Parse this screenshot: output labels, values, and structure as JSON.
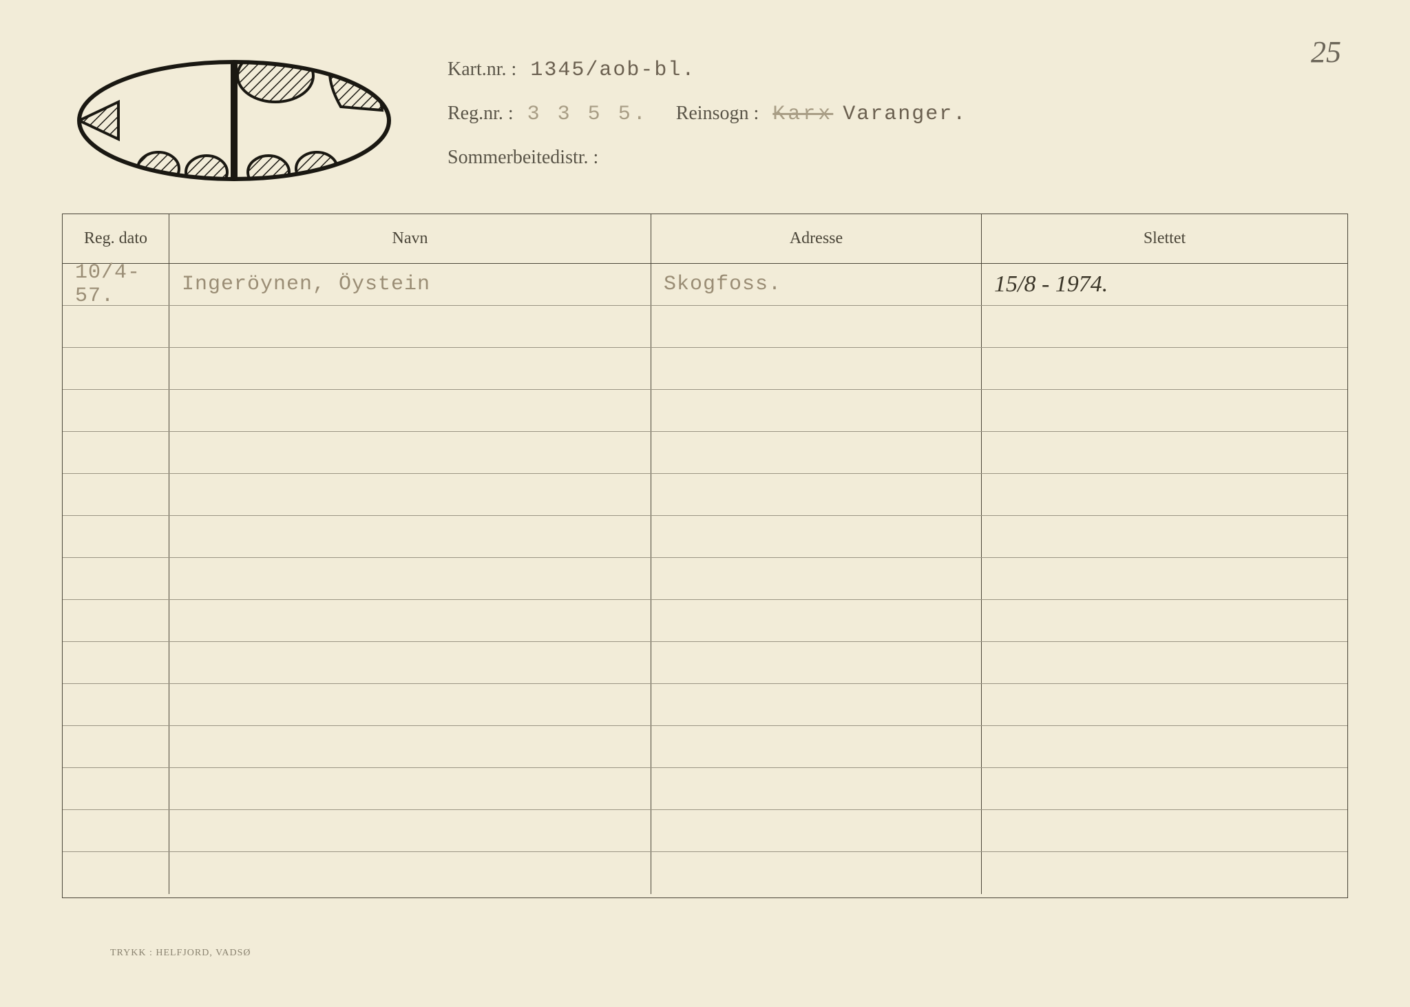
{
  "page_number": "25",
  "header": {
    "kart_nr_label": "Kart.nr. :",
    "kart_nr_value": "1345/aob-bl.",
    "reg_nr_label": "Reg.nr. :",
    "reg_nr_value": "3 3 5 5.",
    "reinsogn_label": "Reinsogn :",
    "reinsogn_struck": "Karx",
    "reinsogn_value": "Varanger.",
    "sommer_label": "Sommerbeitedistr. :"
  },
  "table": {
    "columns": {
      "dato": "Reg. dato",
      "navn": "Navn",
      "adresse": "Adresse",
      "slettet": "Slettet"
    },
    "rows": [
      {
        "dato": "10/4-57.",
        "navn": "Ingeröynen, Öystein",
        "adresse": "Skogfoss.",
        "slettet": "15/8 - 1974."
      }
    ],
    "empty_row_count": 14
  },
  "footer": "TRYKK : HELFJORD, VADSØ",
  "ear_mark": {
    "stroke_color": "#1a1812",
    "stroke_width": 6,
    "hatch_spacing": 8
  },
  "colors": {
    "background": "#f2ecd8",
    "border": "#4a4538",
    "row_line": "#9a9483",
    "label_text": "#5a5548",
    "typed_text": "#9a8d75",
    "handwritten": "#3a3528"
  }
}
